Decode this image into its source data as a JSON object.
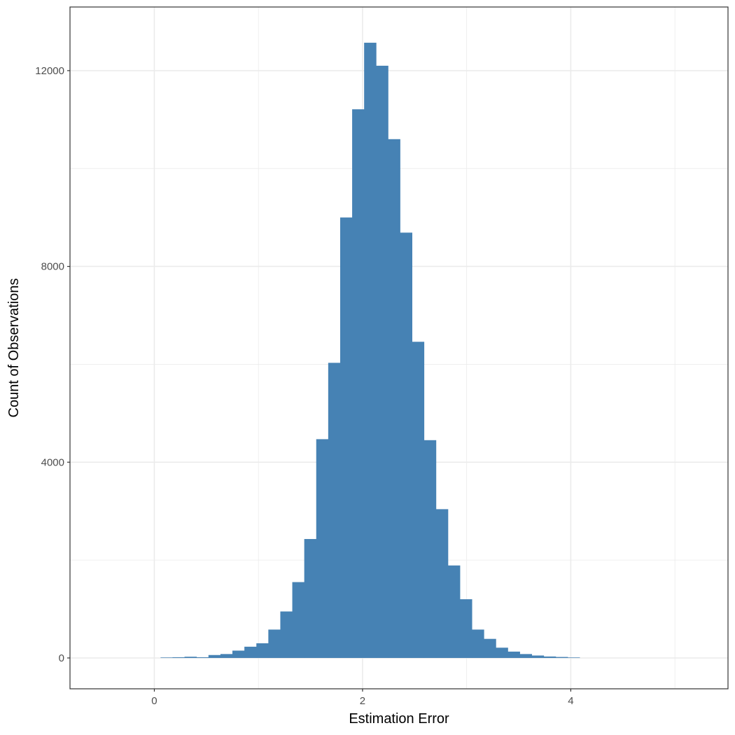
{
  "chart_data": {
    "type": "bar",
    "subtype": "histogram",
    "xlabel": "Estimation Error",
    "ylabel": "Count of Observations",
    "xlim": [
      -0.81,
      5.51
    ],
    "ylim": [
      -630,
      13300
    ],
    "x_ticks": [
      0,
      2,
      4
    ],
    "x_tick_labels": [
      "0",
      "2",
      "4"
    ],
    "y_ticks": [
      0,
      4000,
      8000,
      12000
    ],
    "y_tick_labels": [
      "0",
      "4000",
      "8000",
      "12000"
    ],
    "bin_width": 0.115,
    "bin_starts": [
      0.06,
      0.175,
      0.29,
      0.405,
      0.52,
      0.635,
      0.75,
      0.865,
      0.98,
      1.095,
      1.21,
      1.325,
      1.44,
      1.555,
      1.67,
      1.785,
      1.9,
      2.015,
      2.13,
      2.245,
      2.36,
      2.475,
      2.59,
      2.705,
      2.82,
      2.935,
      3.05,
      3.165,
      3.28,
      3.395,
      3.51,
      3.625,
      3.74,
      3.855,
      3.97
    ],
    "counts": [
      10,
      15,
      25,
      15,
      60,
      80,
      150,
      230,
      300,
      580,
      950,
      1550,
      2430,
      4470,
      6030,
      9000,
      11210,
      12570,
      12100,
      10600,
      8690,
      6460,
      4450,
      3040,
      1890,
      1200,
      580,
      390,
      210,
      130,
      80,
      50,
      30,
      20,
      10
    ],
    "colors": {
      "bar": "#4682b4",
      "grid": "#ebebeb",
      "panel_border": "#333333",
      "tick_text": "#4d4d4d"
    },
    "grid": true
  }
}
